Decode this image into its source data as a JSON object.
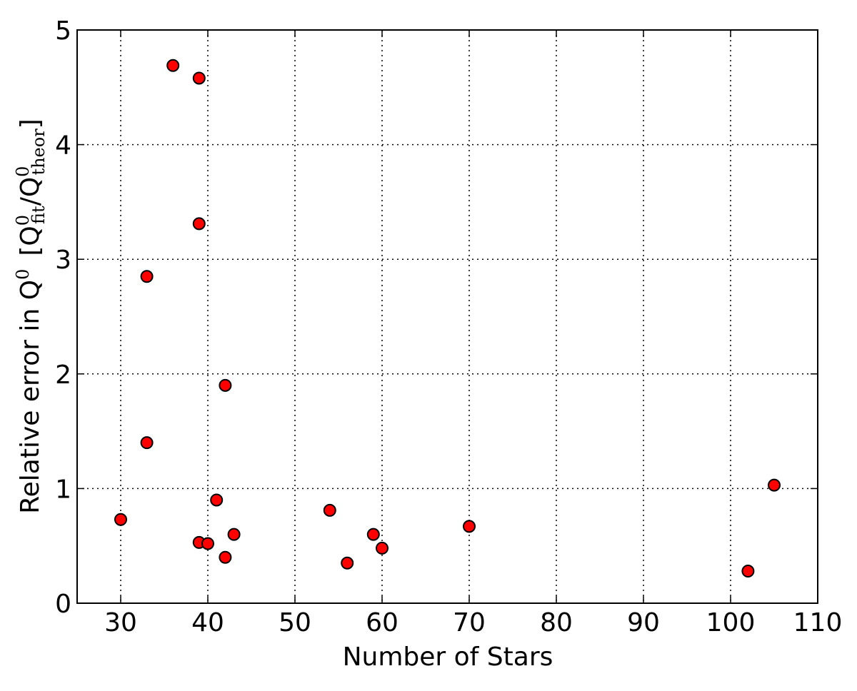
{
  "chart_data": {
    "type": "scatter",
    "xlabel": "Number of Stars",
    "ylabel": [
      "Relative error in Q",
      "0",
      "[Q",
      "0",
      "fit",
      "/Q",
      "0",
      "theor",
      "]"
    ],
    "x": [
      30,
      33,
      33,
      36,
      39,
      39,
      39,
      40,
      41,
      42,
      42,
      43,
      54,
      56,
      59,
      60,
      70,
      102,
      105
    ],
    "series": [
      {
        "color": "#ff0000",
        "values": [
          0.73,
          2.85,
          1.4,
          4.69,
          4.58,
          3.31,
          0.53,
          0.52,
          0.9,
          1.9,
          0.4,
          0.6,
          0.81,
          0.35,
          0.6,
          0.48,
          0.67,
          0.28,
          1.03
        ]
      }
    ],
    "xlim": [
      25,
      110
    ],
    "xticks": [
      30,
      40,
      50,
      60,
      70,
      80,
      90,
      100,
      110
    ],
    "ylim": [
      0,
      5
    ],
    "yticks": [
      0,
      1,
      2,
      3,
      4,
      5
    ],
    "grid": true
  }
}
